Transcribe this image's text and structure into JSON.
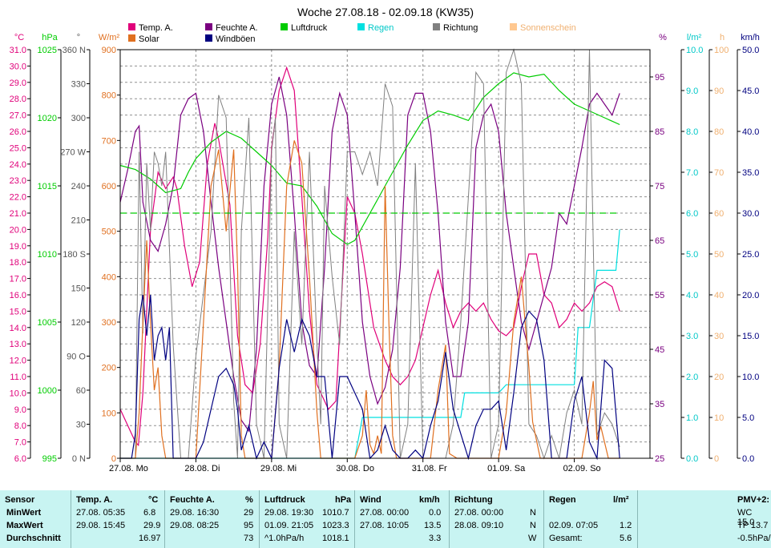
{
  "chart_data": {
    "type": "line",
    "title": "Woche 27.08.18 - 02.09.18 (KW35)",
    "x_ticks": [
      "27.08. Mo",
      "28.08. Di",
      "29.08. Mi",
      "30.08. Do",
      "31.08. Fr",
      "01.09. Sa",
      "02.09. So"
    ],
    "legend": [
      {
        "name": "Temp. A.",
        "color": "#e0007a"
      },
      {
        "name": "Feuchte A.",
        "color": "#7a0080"
      },
      {
        "name": "Luftdruck",
        "color": "#00cc00"
      },
      {
        "name": "Regen",
        "color": "#00e0e0"
      },
      {
        "name": "Richtung",
        "color": "#808080"
      },
      {
        "name": "Sonnenschein",
        "color": "#ffc890"
      },
      {
        "name": "Solar",
        "color": "#e07020"
      },
      {
        "name": "Windböen",
        "color": "#000080"
      }
    ],
    "axes": {
      "temp": {
        "unit": "°C",
        "min": 6.0,
        "max": 31.0,
        "ticks": [
          "31.0",
          "30.0",
          "29.0",
          "28.0",
          "27.0",
          "26.0",
          "25.0",
          "24.0",
          "23.0",
          "22.0",
          "21.0",
          "20.0",
          "19.0",
          "18.0",
          "17.0",
          "16.0",
          "15.0",
          "14.0",
          "13.0",
          "12.0",
          "11.0",
          "10.0",
          "9.0",
          "8.0",
          "7.0",
          "6.0"
        ]
      },
      "pressure": {
        "unit": "hPa",
        "min": 995,
        "max": 1025,
        "ticks": [
          "1025",
          "1020",
          "1015",
          "1010",
          "1005",
          "1000",
          "995"
        ]
      },
      "direction": {
        "unit": "°",
        "min": 0,
        "max": 360,
        "ticks": [
          "360 N",
          "330",
          "300",
          "270 W",
          "240",
          "210",
          "180 S",
          "150",
          "120",
          "90 O",
          "60",
          "30",
          "0 N"
        ]
      },
      "solar": {
        "unit": "W/m²",
        "min": 0,
        "max": 900,
        "ticks": [
          "900",
          "800",
          "700",
          "600",
          "500",
          "400",
          "300",
          "200",
          "100",
          "0"
        ]
      },
      "humidity": {
        "unit": "%",
        "min": 25,
        "max": 100,
        "ticks": [
          "95",
          "85",
          "75",
          "65",
          "55",
          "45",
          "35",
          "25"
        ]
      },
      "rain": {
        "unit": "l/m²",
        "min": 0.0,
        "max": 10.0,
        "ticks": [
          "10.0",
          "9.0",
          "8.0",
          "7.0",
          "6.0",
          "5.0",
          "4.0",
          "3.0",
          "2.0",
          "1.0",
          "0.0"
        ]
      },
      "sunshine": {
        "unit": "h",
        "min": 0,
        "max": 100,
        "ticks": [
          "100",
          "90",
          "80",
          "70",
          "60",
          "50",
          "40",
          "30",
          "20",
          "10",
          "0"
        ]
      },
      "wind": {
        "unit": "km/h",
        "min": 0.0,
        "max": 50.0,
        "ticks": [
          "50.0",
          "45.0",
          "40.0",
          "35.0",
          "30.0",
          "25.0",
          "20.0",
          "15.0",
          "10.0",
          "5.0",
          "0.0"
        ]
      }
    },
    "x_range_days": [
      0,
      7
    ],
    "series": [
      {
        "name": "Temp. A.",
        "axis": "temp",
        "color": "#e0007a",
        "x": [
          0,
          0.2,
          0.24,
          0.3,
          0.4,
          0.5,
          0.6,
          0.7,
          0.75,
          0.85,
          0.95,
          1.05,
          1.15,
          1.25,
          1.3,
          1.45,
          1.55,
          1.65,
          1.75,
          1.85,
          1.95,
          2.0,
          2.1,
          2.2,
          2.3,
          2.4,
          2.5,
          2.6,
          2.7,
          2.75,
          2.85,
          2.95,
          3.0,
          3.1,
          3.2,
          3.35,
          3.5,
          3.6,
          3.7,
          3.8,
          3.9,
          4.0,
          4.1,
          4.2,
          4.3,
          4.4,
          4.5,
          4.6,
          4.7,
          4.8,
          4.9,
          5.0,
          5.1,
          5.2,
          5.3,
          5.4,
          5.5,
          5.6,
          5.7,
          5.8,
          5.9,
          6.0,
          6.1,
          6.2,
          6.3,
          6.4,
          6.5,
          6.6
        ],
        "y": [
          9.0,
          7.0,
          6.8,
          10.0,
          20.0,
          23.5,
          22.5,
          23.2,
          22.5,
          19.0,
          16.5,
          18.0,
          24.0,
          26.5,
          25.5,
          21.5,
          13.5,
          10.5,
          10.0,
          13.0,
          19.5,
          25.0,
          28.5,
          29.9,
          28.5,
          22.0,
          15.0,
          10.5,
          9.5,
          9.0,
          9.5,
          18.0,
          22.0,
          21.0,
          18.5,
          14.0,
          12.0,
          11.0,
          10.5,
          11.0,
          12.0,
          14.0,
          16.0,
          17.5,
          15.5,
          14.0,
          15.0,
          15.5,
          15.0,
          15.5,
          14.5,
          13.8,
          13.5,
          14.0,
          16.5,
          18.5,
          18.5,
          16.0,
          15.5,
          14.0,
          14.5,
          15.5,
          15.0,
          15.5,
          16.5,
          16.8,
          16.5,
          15.0
        ]
      },
      {
        "name": "Feuchte A.",
        "axis": "humidity",
        "color": "#7a0080",
        "x": [
          0,
          0.1,
          0.2,
          0.25,
          0.3,
          0.4,
          0.5,
          0.6,
          0.7,
          0.8,
          0.9,
          1.0,
          1.1,
          1.2,
          1.3,
          1.4,
          1.5,
          1.6,
          1.7,
          1.8,
          1.9,
          2.0,
          2.1,
          2.2,
          2.3,
          2.4,
          2.5,
          2.6,
          2.7,
          2.8,
          2.9,
          3.0,
          3.1,
          3.2,
          3.3,
          3.4,
          3.5,
          3.6,
          3.7,
          3.8,
          3.9,
          4.0,
          4.1,
          4.2,
          4.3,
          4.4,
          4.5,
          4.6,
          4.7,
          4.8,
          4.9,
          5.0,
          5.1,
          5.2,
          5.3,
          5.4,
          5.5,
          5.6,
          5.7,
          5.8,
          5.9,
          6.0,
          6.1,
          6.2,
          6.3,
          6.4,
          6.5,
          6.6
        ],
        "y": [
          72,
          78,
          85,
          86,
          72,
          65,
          63,
          68,
          75,
          88,
          91,
          92,
          85,
          72,
          60,
          50,
          40,
          32,
          30,
          45,
          75,
          90,
          95,
          88,
          70,
          50,
          42,
          40,
          60,
          85,
          92,
          88,
          70,
          50,
          40,
          35,
          38,
          45,
          60,
          88,
          92,
          92,
          85,
          70,
          50,
          40,
          40,
          50,
          82,
          88,
          90,
          85,
          70,
          60,
          50,
          45,
          50,
          55,
          60,
          70,
          68,
          75,
          82,
          90,
          92,
          90,
          88,
          92
        ]
      },
      {
        "name": "Luftdruck",
        "axis": "pressure",
        "color": "#00cc00",
        "x": [
          0,
          0.2,
          0.4,
          0.6,
          0.8,
          0.9,
          1.0,
          1.2,
          1.4,
          1.6,
          1.8,
          2.0,
          2.2,
          2.4,
          2.6,
          2.8,
          3.0,
          3.1,
          3.2,
          3.4,
          3.6,
          3.8,
          4.0,
          4.2,
          4.4,
          4.6,
          4.8,
          5.0,
          5.2,
          5.4,
          5.6,
          5.8,
          6.0,
          6.2,
          6.4,
          6.6
        ],
        "y": [
          1016.5,
          1016.2,
          1015.5,
          1014.5,
          1014.8,
          1016.0,
          1017.0,
          1018.2,
          1019.0,
          1018.5,
          1017.5,
          1016.5,
          1015.2,
          1015.0,
          1013.5,
          1011.5,
          1010.7,
          1011.0,
          1012.0,
          1014.0,
          1016.0,
          1018.0,
          1019.8,
          1020.5,
          1020.2,
          1019.8,
          1021.5,
          1022.5,
          1023.3,
          1023.0,
          1023.2,
          1022.0,
          1021.0,
          1020.5,
          1020.0,
          1019.5
        ]
      },
      {
        "name": "Regen",
        "axis": "rain",
        "color": "#00e0e0",
        "x": [
          0,
          3.1,
          3.2,
          3.25,
          4.5,
          4.55,
          5.0,
          5.1,
          6.0,
          6.05,
          6.2,
          6.3,
          6.55,
          6.6
        ],
        "y": [
          0,
          0,
          1.0,
          1.0,
          1.0,
          1.6,
          1.6,
          1.8,
          1.8,
          3.2,
          3.2,
          4.6,
          4.6,
          5.6
        ]
      },
      {
        "name": "Richtung",
        "axis": "direction",
        "color": "#808080",
        "x": [
          0,
          0.2,
          0.25,
          0.3,
          0.35,
          0.4,
          0.45,
          0.5,
          0.55,
          0.6,
          0.7,
          0.8,
          0.9,
          1.0,
          1.2,
          1.3,
          1.4,
          1.5,
          1.55,
          1.6,
          1.7,
          1.8,
          1.9,
          2.0,
          2.05,
          2.1,
          2.2,
          2.3,
          2.4,
          2.5,
          2.6,
          2.65,
          2.7,
          2.8,
          2.9,
          3.0,
          3.1,
          3.2,
          3.3,
          3.4,
          3.5,
          3.6,
          3.7,
          3.8,
          3.9,
          4.0,
          4.3,
          4.4,
          4.5,
          4.6,
          4.7,
          4.8,
          4.9,
          5.0,
          5.1,
          5.2,
          5.3,
          5.4,
          5.5,
          5.6,
          5.7,
          5.8,
          5.9,
          6.0,
          6.1,
          6.2,
          6.3,
          6.4,
          6.5,
          6.6
        ],
        "y": [
          0,
          0,
          270,
          110,
          260,
          200,
          270,
          260,
          240,
          270,
          100,
          0,
          0,
          90,
          200,
          320,
          300,
          50,
          0,
          200,
          300,
          30,
          0,
          270,
          300,
          30,
          0,
          200,
          100,
          270,
          100,
          30,
          240,
          160,
          100,
          270,
          270,
          250,
          270,
          240,
          330,
          310,
          0,
          30,
          260,
          0,
          0,
          30,
          120,
          230,
          340,
          330,
          0,
          30,
          340,
          360,
          330,
          30,
          20,
          0,
          20,
          0,
          40,
          60,
          30,
          360,
          20,
          40,
          30,
          10
        ]
      },
      {
        "name": "Solar",
        "axis": "solar",
        "color": "#e07020",
        "x": [
          0,
          0.2,
          0.25,
          0.3,
          0.35,
          0.4,
          0.45,
          0.5,
          0.55,
          0.6,
          0.7,
          0.8,
          0.85,
          1.0,
          1.1,
          1.2,
          1.3,
          1.4,
          1.5,
          1.55,
          1.6,
          1.65,
          1.75,
          2.0,
          2.1,
          2.2,
          2.3,
          2.4,
          2.5,
          2.6,
          2.65,
          2.75,
          3.0,
          3.1,
          3.2,
          3.25,
          3.3,
          3.35,
          3.4,
          3.45,
          3.5,
          3.55,
          3.6,
          3.65,
          3.75,
          4.0,
          4.1,
          4.2,
          4.3,
          4.35,
          4.45,
          4.5,
          4.75,
          5.0,
          5.1,
          5.2,
          5.3,
          5.4,
          5.45,
          5.55,
          6.0,
          6.1,
          6.2,
          6.25,
          6.3,
          6.35,
          6.45,
          6.6
        ],
        "y": [
          0,
          0,
          100,
          300,
          480,
          300,
          150,
          200,
          50,
          0,
          0,
          0,
          0,
          0,
          300,
          600,
          680,
          500,
          680,
          420,
          50,
          0,
          0,
          0,
          200,
          600,
          700,
          650,
          400,
          100,
          0,
          0,
          0,
          0,
          50,
          150,
          30,
          10,
          50,
          10,
          600,
          300,
          50,
          0,
          0,
          0,
          0,
          150,
          250,
          10,
          0,
          0,
          0,
          0,
          100,
          300,
          400,
          200,
          80,
          0,
          0,
          0,
          100,
          170,
          40,
          70,
          0,
          0
        ]
      },
      {
        "name": "Windböen",
        "axis": "wind",
        "color": "#000080",
        "x": [
          0,
          0.15,
          0.2,
          0.25,
          0.3,
          0.35,
          0.4,
          0.45,
          0.5,
          0.55,
          0.6,
          0.65,
          0.7,
          0.8,
          0.9,
          1.0,
          1.1,
          1.2,
          1.3,
          1.4,
          1.5,
          1.55,
          1.6,
          1.7,
          1.8,
          1.9,
          2.0,
          2.1,
          2.2,
          2.3,
          2.4,
          2.5,
          2.6,
          2.7,
          2.8,
          2.9,
          3.0,
          3.1,
          3.2,
          3.3,
          3.4,
          3.5,
          3.6,
          3.7,
          3.8,
          3.9,
          4.0,
          4.1,
          4.2,
          4.3,
          4.4,
          4.5,
          4.6,
          4.7,
          4.8,
          4.9,
          5.0,
          5.1,
          5.2,
          5.3,
          5.4,
          5.5,
          5.6,
          5.7,
          5.8,
          5.9,
          6.0,
          6.1,
          6.2,
          6.3,
          6.4,
          6.5,
          6.6
        ],
        "y": [
          0,
          0,
          3,
          17,
          20,
          15,
          20,
          12,
          15,
          16,
          12,
          16,
          0,
          0,
          0,
          0,
          2,
          6,
          10,
          11,
          9,
          6,
          1,
          4,
          0,
          2,
          0,
          11,
          17,
          13,
          17,
          15,
          10,
          10,
          0,
          10,
          10,
          8,
          6,
          0,
          1,
          4,
          1,
          0,
          0,
          1,
          0,
          4,
          7,
          13,
          6,
          3,
          0,
          4,
          6,
          6,
          7,
          1,
          8,
          16,
          18,
          17,
          12,
          0,
          0,
          0,
          7,
          10,
          2,
          0,
          12,
          11,
          0
        ]
      },
      {
        "name": "Temp. A. threshold",
        "axis": "temp",
        "color": "#00cc00",
        "dashed": true,
        "x": [
          0,
          6.6
        ],
        "y": [
          21.0,
          21.0
        ]
      }
    ]
  },
  "summary": {
    "sensor": {
      "header": "Sensor",
      "rows": [
        "MinWert",
        "MaxWert",
        "Durchschnitt"
      ]
    },
    "temp": {
      "header": "Temp. A.",
      "unit": "°C",
      "min_time": "27.08.  05:35",
      "min_val": "6.8",
      "max_time": "29.08.  15:45",
      "max_val": "29.9",
      "avg": "16.97"
    },
    "hum": {
      "header": "Feuchte A.",
      "unit": "%",
      "min_time": "29.08.  16:30",
      "min_val": "29",
      "max_time": "29.08.  08:25",
      "max_val": "95",
      "avg": "73"
    },
    "press": {
      "header": "Luftdruck",
      "unit": "hPa",
      "min_time": "29.08.  19:30",
      "min_val": "1010.7",
      "max_time": "01.09.  21:05",
      "max_val": "1023.3",
      "avg_label": "^1.0hPa/h",
      "avg": "1018.1"
    },
    "wind": {
      "header": "Wind",
      "unit": "km/h",
      "min_time": "27.08.  00:00",
      "min_val": "0.0",
      "max_time": "27.08.  10:05",
      "max_val": "13.5",
      "avg": "3.3"
    },
    "dir": {
      "header": "Richtung",
      "min_time": "27.08.  00:00",
      "min_val": "N",
      "max_time": "28.08.  09:10",
      "max_val": "N",
      "avg": "W"
    },
    "rain": {
      "header": "Regen",
      "unit": "l/m²",
      "max_time": "02.09.  07:05",
      "max_val": "1.2",
      "total_label": "Gesamt:",
      "total": "5.6"
    },
    "pmv": {
      "header": "PMV+2:",
      "l1": "WC 15.0",
      "l2": "TP 13.7",
      "l3": "-0.5hPa/"
    }
  }
}
